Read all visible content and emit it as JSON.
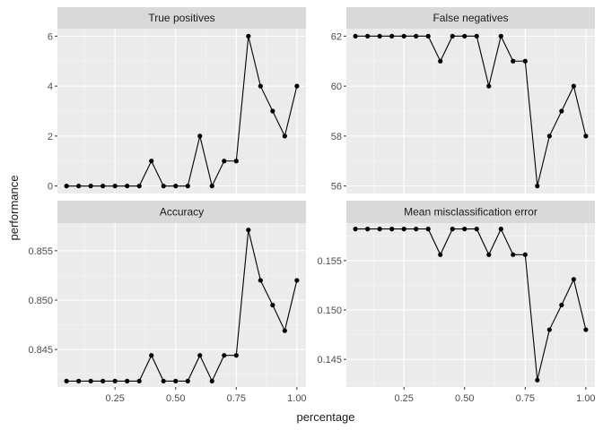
{
  "chart_data": {
    "type": "line",
    "xlabel": "percentage",
    "ylabel": "performance",
    "x": [
      0.05,
      0.1,
      0.15,
      0.2,
      0.25,
      0.3,
      0.35,
      0.4,
      0.45,
      0.5,
      0.55,
      0.6,
      0.65,
      0.7,
      0.75,
      0.8,
      0.85,
      0.9,
      0.95,
      1.0
    ],
    "xlim": [
      0.0125,
      1.0375
    ],
    "x_ticks": [
      0.25,
      0.5,
      0.75,
      1.0
    ],
    "x_tick_labels": [
      "0.25",
      "0.50",
      "0.75",
      "1.00"
    ],
    "grid": true,
    "facets": [
      {
        "title": "True positives",
        "values": [
          0,
          0,
          0,
          0,
          0,
          0,
          0,
          1,
          0,
          0,
          0,
          2,
          0,
          1,
          1,
          6,
          4,
          3,
          2,
          4
        ],
        "ylim": [
          -0.3,
          6.3
        ],
        "y_ticks": [
          0,
          2,
          4,
          6
        ],
        "y_tick_labels": [
          "0",
          "2",
          "4",
          "6"
        ]
      },
      {
        "title": "False negatives",
        "values": [
          62,
          62,
          62,
          62,
          62,
          62,
          62,
          61,
          62,
          62,
          62,
          60,
          62,
          61,
          61,
          56,
          58,
          59,
          60,
          58
        ],
        "ylim": [
          55.7,
          62.3
        ],
        "y_ticks": [
          56,
          58,
          60,
          62
        ],
        "y_tick_labels": [
          "56",
          "58",
          "60",
          "62"
        ]
      },
      {
        "title": "Accuracy",
        "values": [
          0.8418,
          0.8418,
          0.8418,
          0.8418,
          0.8418,
          0.8418,
          0.8418,
          0.8444,
          0.8418,
          0.8418,
          0.8418,
          0.8444,
          0.8418,
          0.8444,
          0.8444,
          0.8571,
          0.852,
          0.8495,
          0.8469,
          0.852
        ],
        "ylim": [
          0.8412,
          0.8578
        ],
        "y_ticks": [
          0.845,
          0.85,
          0.855
        ],
        "y_tick_labels": [
          "0.845",
          "0.850",
          "0.855"
        ]
      },
      {
        "title": "Mean misclassification error",
        "values": [
          0.1582,
          0.1582,
          0.1582,
          0.1582,
          0.1582,
          0.1582,
          0.1582,
          0.1556,
          0.1582,
          0.1582,
          0.1582,
          0.1556,
          0.1582,
          0.1556,
          0.1556,
          0.1429,
          0.148,
          0.1505,
          0.1531,
          0.148
        ],
        "ylim": [
          0.1422,
          0.1588
        ],
        "y_ticks": [
          0.145,
          0.15,
          0.155
        ],
        "y_tick_labels": [
          "0.145",
          "0.150",
          "0.155"
        ]
      }
    ],
    "colors": {
      "panel_bg": "#ebebeb",
      "strip_bg": "#d9d9d9",
      "grid_major": "#ffffff",
      "grid_minor": "#f5f5f5",
      "line": "#000000",
      "point": "#000000",
      "text": "#1a1a1a",
      "tick_text": "#4d4d4d"
    }
  }
}
